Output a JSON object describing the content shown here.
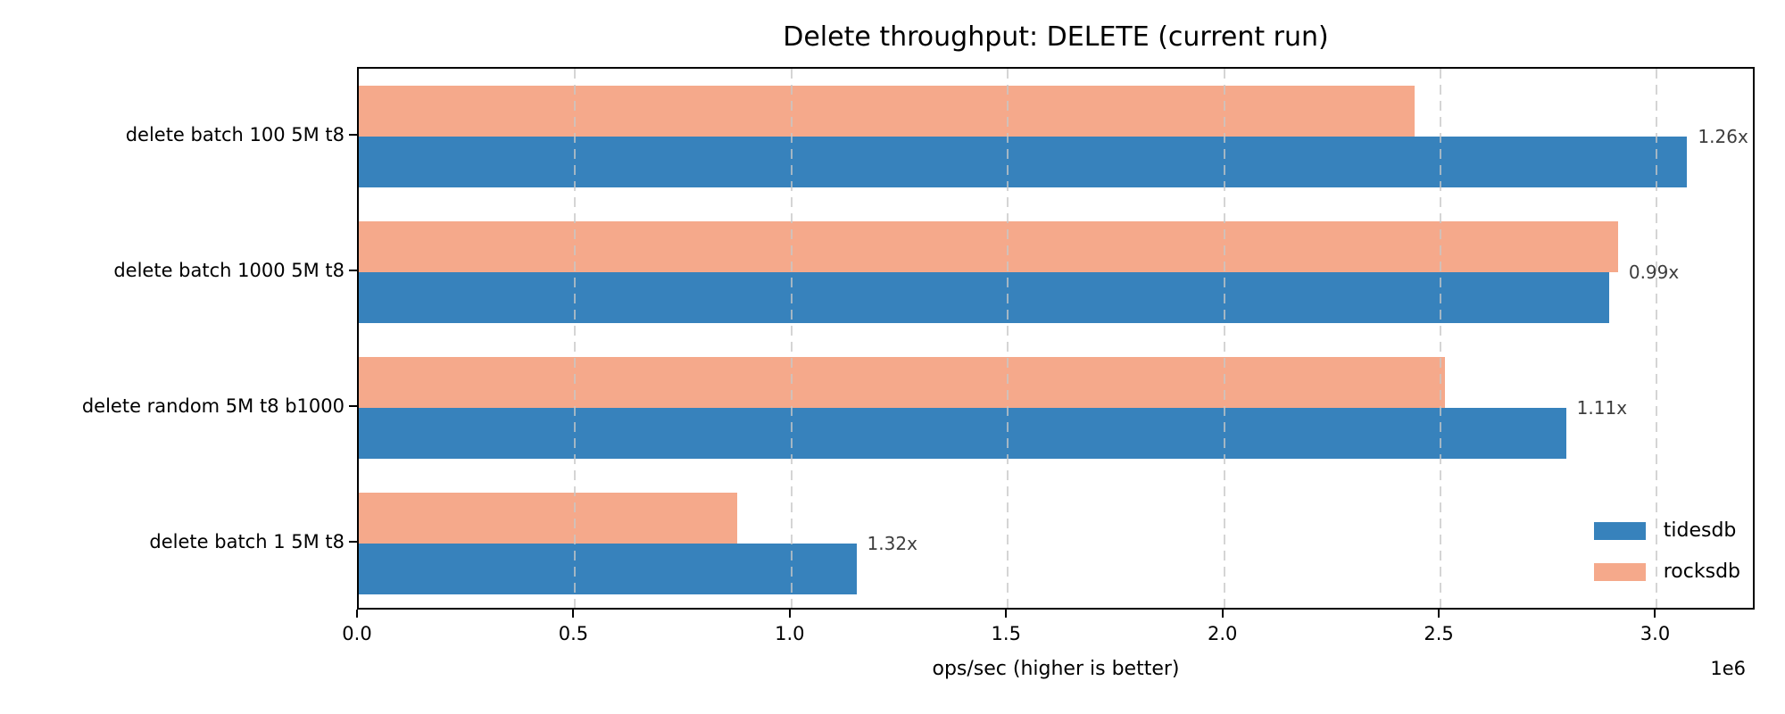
{
  "chart_data": {
    "type": "bar",
    "orientation": "horizontal",
    "title": "Delete throughput: DELETE (current run)",
    "xlabel": "ops/sec (higher is better)",
    "offset_label": "1e6",
    "xlim": [
      0,
      3230000
    ],
    "x_ticks": [
      {
        "value": 0,
        "label": "0.0"
      },
      {
        "value": 500000,
        "label": "0.5"
      },
      {
        "value": 1000000,
        "label": "1.0"
      },
      {
        "value": 1500000,
        "label": "1.5"
      },
      {
        "value": 2000000,
        "label": "2.0"
      },
      {
        "value": 2500000,
        "label": "2.5"
      },
      {
        "value": 3000000,
        "label": "3.0"
      }
    ],
    "grid": "vertical-dashed",
    "categories": [
      "delete batch 100 5M t8",
      "delete batch 1000 5M t8",
      "delete random 5M t8 b1000",
      "delete batch 1 5M t8"
    ],
    "series": [
      {
        "name": "tidesdb",
        "color": "#3782BC",
        "values": [
          3070000,
          2890000,
          2790000,
          1150000
        ]
      },
      {
        "name": "rocksdb",
        "color": "#F5A98B",
        "values": [
          2440000,
          2910000,
          2510000,
          875000
        ]
      }
    ],
    "ratio_annotations": [
      "1.26x",
      "0.99x",
      "1.11x",
      "1.32x"
    ],
    "legend": {
      "position": "lower right",
      "entries": [
        "tidesdb",
        "rocksdb"
      ]
    },
    "colors": {
      "tidesdb": "#3782BC",
      "rocksdb": "#F5A98B",
      "grid": "#C7C7C7",
      "spine": "#000000",
      "annotation_text": "#3D3D3D"
    }
  }
}
